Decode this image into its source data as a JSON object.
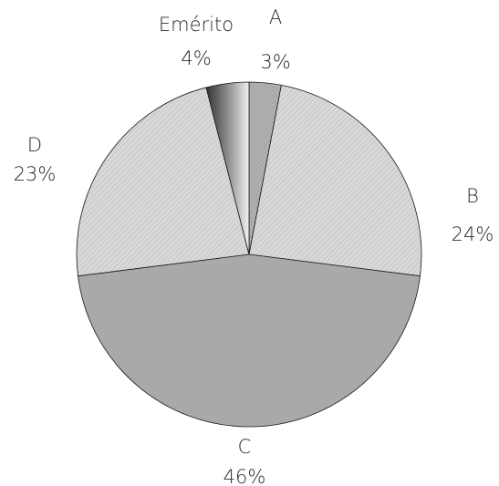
{
  "chart_data": {
    "type": "pie",
    "title": "",
    "start": "12 o'clock, clockwise",
    "slices": [
      {
        "name": "A",
        "pct_label": "3%",
        "value": 3,
        "fill": "#a3a3a3",
        "pattern": "hatch"
      },
      {
        "name": "B",
        "pct_label": "24%",
        "value": 24,
        "fill": "#e6e6e6",
        "pattern": "hatch"
      },
      {
        "name": "C",
        "pct_label": "46%",
        "value": 46,
        "fill": "#a9a9a9",
        "pattern": "none"
      },
      {
        "name": "D",
        "pct_label": "23%",
        "value": 23,
        "fill": "#c4c4c4",
        "pattern": "hatch"
      },
      {
        "name": "Emérito",
        "pct_label": "4%",
        "value": 4,
        "fill": "#6a6a6a",
        "pattern": "gradient"
      }
    ]
  }
}
